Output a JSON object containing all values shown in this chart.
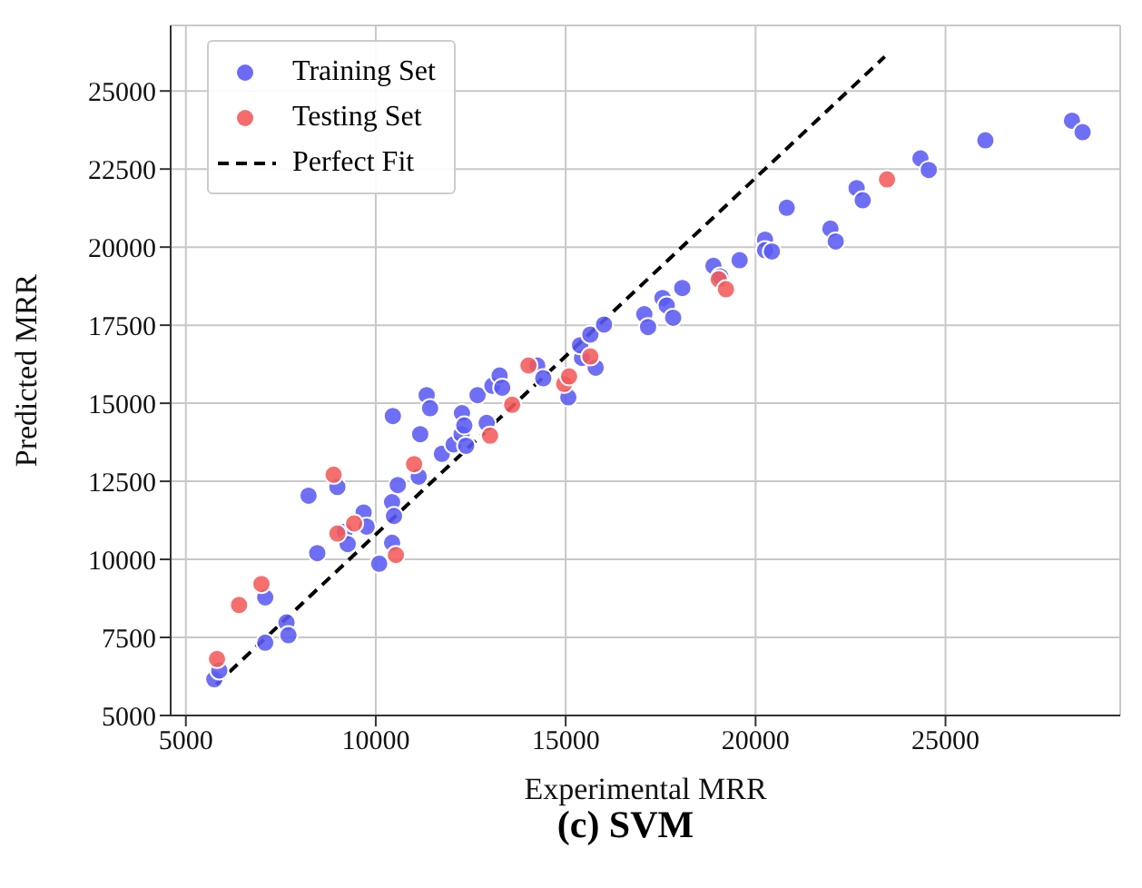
{
  "chart_data": {
    "type": "scatter",
    "title": "(c) SVM",
    "xlabel": "Experimental MRR",
    "ylabel": "Predicted MRR",
    "xlim": [
      4600,
      29600
    ],
    "ylim": [
      5000,
      27100
    ],
    "xticks": [
      5000,
      10000,
      15000,
      20000,
      25000
    ],
    "yticks": [
      5000,
      7500,
      10000,
      12500,
      15000,
      17500,
      20000,
      22500,
      25000
    ],
    "grid": true,
    "legend": "top left",
    "marker": "circle",
    "series": [
      {
        "name": "Training Set",
        "color": "#5b5bf5",
        "x": [
          5750,
          5880,
          7090,
          7090,
          7650,
          7700,
          8230,
          8460,
          8990,
          9180,
          9260,
          9680,
          9760,
          10090,
          10430,
          10430,
          10480,
          10580,
          10450,
          11130,
          11170,
          11340,
          11430,
          11740,
          12050,
          12260,
          12270,
          12330,
          12380,
          12680,
          12920,
          13070,
          13260,
          13330,
          14250,
          14410,
          15070,
          15430,
          15790,
          15380,
          15650,
          16010,
          17070,
          17170,
          17550,
          17660,
          17830,
          18070,
          18890,
          19070,
          19580,
          20250,
          20250,
          20430,
          20820,
          21970,
          22110,
          22660,
          22820,
          24340,
          24560,
          26050,
          28330,
          28610
        ],
        "values": [
          6160,
          6440,
          7330,
          8780,
          7980,
          7570,
          12040,
          10200,
          12320,
          10880,
          10490,
          11500,
          11050,
          9860,
          10530,
          11830,
          11390,
          12380,
          14590,
          12650,
          14010,
          15260,
          14840,
          13380,
          13680,
          14010,
          14680,
          14290,
          13640,
          15260,
          14370,
          15560,
          15890,
          15500,
          16210,
          15800,
          15190,
          16450,
          16140,
          16860,
          17200,
          17520,
          17850,
          17440,
          18370,
          18130,
          17740,
          18690,
          19400,
          19060,
          19580,
          20240,
          19900,
          19860,
          21260,
          20590,
          20180,
          21890,
          21500,
          22840,
          22470,
          23420,
          24050,
          23680
        ]
      },
      {
        "name": "Testing Set",
        "color": "#f55b5b",
        "x": [
          5820,
          6400,
          6990,
          8890,
          8990,
          9430,
          10530,
          11010,
          13010,
          13590,
          14020,
          14960,
          15090,
          15650,
          19030,
          19220,
          23460
        ],
        "values": [
          6810,
          8540,
          9210,
          12710,
          10830,
          11150,
          10140,
          13050,
          13960,
          14950,
          16210,
          15620,
          15860,
          16500,
          18970,
          18650,
          22170
        ]
      },
      {
        "name": "Perfect Fit",
        "type": "line",
        "color": "#000000",
        "line_style": "dashed",
        "marker": "none",
        "x": [
          5800,
          23400
        ],
        "values": [
          6000,
          26100
        ]
      }
    ]
  }
}
